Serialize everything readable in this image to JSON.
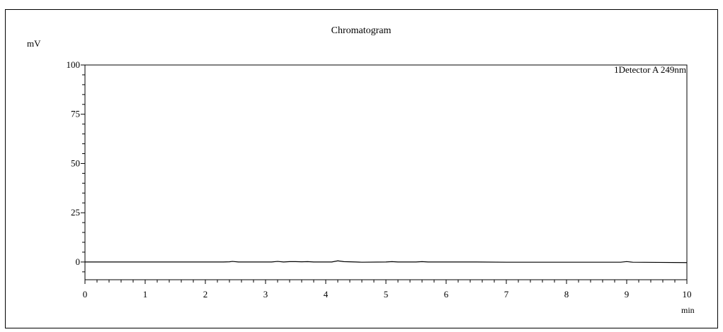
{
  "chart_data": {
    "type": "line",
    "title": "Chromatogram",
    "ylabel": "mV",
    "xlabel": "min",
    "xlim": [
      0,
      10
    ],
    "ylim": [
      -9,
      100
    ],
    "x_ticks": [
      0,
      1,
      2,
      3,
      4,
      5,
      6,
      7,
      8,
      9,
      10
    ],
    "y_ticks": [
      0,
      25,
      50,
      75,
      100
    ],
    "legend": "1Detector A 249nm",
    "legend_position": "top-right",
    "grid": false,
    "series": [
      {
        "name": "1Detector A 249nm",
        "color": "#000000",
        "x": [
          0,
          0.5,
          1,
          1.5,
          2,
          2.3,
          2.4,
          2.45,
          2.55,
          3.1,
          3.2,
          3.3,
          3.4,
          3.5,
          3.6,
          3.7,
          3.8,
          4.1,
          4.2,
          4.3,
          4.5,
          4.6,
          5.0,
          5.1,
          5.2,
          5.5,
          5.6,
          5.7,
          6,
          6.5,
          7,
          7.5,
          8,
          8.5,
          8.9,
          9.0,
          9.1,
          9.5,
          10
        ],
        "values": [
          0,
          0,
          0,
          0,
          0,
          0,
          0.1,
          0.3,
          0,
          0,
          0.3,
          0,
          0.2,
          0.2,
          0.1,
          0.2,
          0,
          0,
          0.6,
          0.2,
          0,
          -0.1,
          0,
          0.2,
          0,
          0,
          0.2,
          0,
          0,
          0,
          -0.1,
          -0.1,
          -0.1,
          -0.1,
          -0.1,
          0.2,
          -0.1,
          -0.2,
          -0.3
        ]
      }
    ]
  }
}
